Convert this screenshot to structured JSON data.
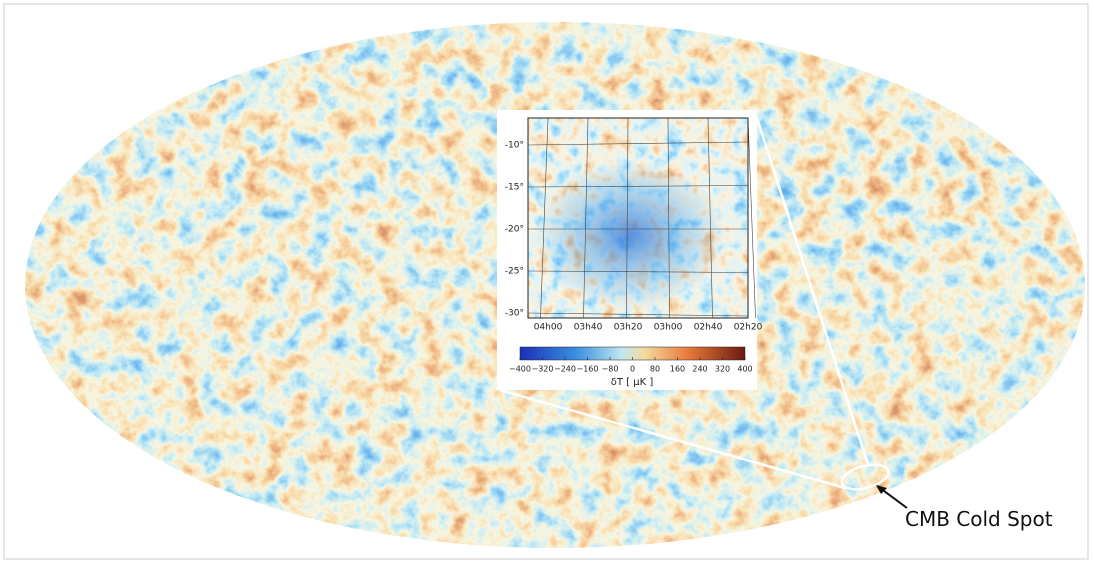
{
  "inset": {
    "y_labels": [
      "-10°",
      "-15°",
      "-20°",
      "-25°",
      "-30°"
    ],
    "x_labels": [
      "04h00",
      "03h40",
      "03h20",
      "03h00",
      "02h40",
      "02h20"
    ]
  },
  "colorbar": {
    "ticks": [
      "−400",
      "−320",
      "−240",
      "−160",
      "−80",
      "0",
      "80",
      "160",
      "240",
      "320",
      "400"
    ],
    "label": "δT [ μK ]"
  },
  "annotation": "CMB Cold Spot"
}
